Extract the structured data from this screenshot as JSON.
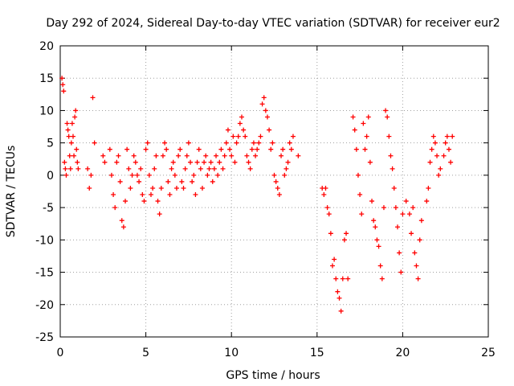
{
  "chart_data": {
    "type": "scatter",
    "title": "Day 292 of 2024, Sidereal Day-to-day VTEC variation (SDTVAR) for receiver eur2",
    "xlabel": "GPS time / hours",
    "ylabel": "SDTVAR / TECUs",
    "xlim": [
      0,
      25
    ],
    "ylim": [
      -25,
      20
    ],
    "xticks": [
      0,
      5,
      10,
      15,
      20,
      25
    ],
    "xtick_labels": [
      "0",
      "5",
      "10",
      "15",
      "20",
      "25"
    ],
    "yticks": [
      -25,
      -20,
      -15,
      -10,
      -5,
      0,
      5,
      10,
      15,
      20
    ],
    "ytick_labels": [
      "-25",
      "-20",
      "-15",
      "-10",
      "-5",
      "0",
      "5",
      "10",
      "15",
      "20"
    ],
    "grid": true,
    "marker": "+",
    "marker_color": "#ff0000",
    "series": [
      {
        "name": "SDTVAR",
        "x": [
          0.1,
          0.15,
          0.2,
          0.25,
          0.3,
          0.35,
          0.4,
          0.45,
          0.5,
          0.55,
          0.6,
          0.65,
          0.7,
          0.75,
          0.8,
          0.85,
          0.9,
          0.95,
          1.0,
          1.05,
          1.6,
          1.7,
          1.8,
          1.9,
          2.0,
          2.5,
          2.6,
          2.9,
          3.0,
          3.1,
          3.2,
          3.3,
          3.4,
          3.5,
          3.6,
          3.7,
          3.8,
          3.9,
          4.0,
          4.1,
          4.2,
          4.3,
          4.4,
          4.5,
          4.6,
          4.7,
          4.8,
          4.9,
          5.0,
          5.1,
          5.2,
          5.3,
          5.4,
          5.5,
          5.6,
          5.7,
          5.8,
          5.9,
          6.0,
          6.1,
          6.2,
          6.3,
          6.4,
          6.5,
          6.6,
          6.7,
          6.8,
          6.9,
          7.0,
          7.1,
          7.2,
          7.3,
          7.4,
          7.5,
          7.6,
          7.7,
          7.8,
          7.9,
          8.0,
          8.1,
          8.2,
          8.3,
          8.4,
          8.5,
          8.6,
          8.7,
          8.8,
          8.9,
          9.0,
          9.1,
          9.2,
          9.3,
          9.4,
          9.5,
          9.6,
          9.7,
          9.8,
          9.9,
          10.0,
          10.1,
          10.2,
          10.3,
          10.4,
          10.5,
          10.6,
          10.7,
          10.8,
          10.9,
          11.0,
          11.1,
          11.2,
          11.3,
          11.4,
          11.5,
          11.6,
          11.7,
          11.8,
          11.9,
          12.0,
          12.1,
          12.2,
          12.3,
          12.4,
          12.5,
          12.6,
          12.7,
          12.8,
          12.9,
          13.0,
          13.1,
          13.2,
          13.3,
          13.4,
          13.5,
          13.6,
          13.9,
          15.3,
          15.4,
          15.5,
          15.6,
          15.7,
          15.8,
          15.9,
          16.0,
          16.1,
          16.2,
          16.3,
          16.4,
          16.5,
          16.6,
          16.7,
          16.8,
          17.1,
          17.2,
          17.3,
          17.4,
          17.5,
          17.6,
          17.7,
          17.8,
          17.9,
          18.0,
          18.1,
          18.2,
          18.3,
          18.4,
          18.5,
          18.6,
          18.7,
          18.8,
          18.9,
          19.0,
          19.1,
          19.2,
          19.3,
          19.4,
          19.5,
          19.6,
          19.7,
          19.8,
          19.9,
          20.0,
          20.2,
          20.4,
          20.5,
          20.6,
          20.7,
          20.8,
          20.9,
          21.0,
          21.1,
          21.4,
          21.5,
          21.6,
          21.7,
          21.8,
          21.9,
          22.0,
          22.1,
          22.2,
          22.4,
          22.5,
          22.6,
          22.7,
          22.8,
          22.9
        ],
        "y": [
          15,
          14,
          13,
          2,
          1,
          0,
          8,
          7,
          6,
          3,
          1,
          5,
          8,
          6,
          3,
          9,
          10,
          4,
          2,
          1,
          1,
          -2,
          0,
          12,
          5,
          3,
          2,
          4,
          0,
          -3,
          -5,
          2,
          3,
          -1,
          -7,
          -8,
          -4,
          4,
          1,
          -2,
          0,
          3,
          2,
          0,
          -1,
          1,
          -3,
          -4,
          4,
          5,
          0,
          -3,
          -2,
          1,
          3,
          -4,
          -6,
          -2,
          3,
          5,
          4,
          -1,
          -3,
          1,
          2,
          0,
          -2,
          3,
          4,
          -1,
          -2,
          1,
          3,
          5,
          2,
          -1,
          0,
          -3,
          2,
          4,
          1,
          -2,
          2,
          3,
          0,
          1,
          2,
          -1,
          1,
          3,
          0,
          2,
          4,
          1,
          3,
          5,
          7,
          4,
          3,
          6,
          2,
          5,
          6,
          8,
          9,
          7,
          6,
          3,
          2,
          1,
          4,
          5,
          3,
          4,
          5,
          6,
          11,
          12,
          10,
          9,
          7,
          4,
          5,
          0,
          -1,
          -2,
          -3,
          3,
          4,
          0,
          1,
          2,
          5,
          4,
          6,
          3,
          -2,
          -3,
          -2,
          -5,
          -6,
          -9,
          -14,
          -13,
          -16,
          -18,
          -19,
          -21,
          -16,
          -10,
          -9,
          -16,
          9,
          7,
          4,
          0,
          -3,
          -6,
          8,
          4,
          6,
          9,
          2,
          -4,
          -7,
          -8,
          -10,
          -11,
          -14,
          -16,
          -5,
          10,
          9,
          6,
          3,
          1,
          -2,
          -5,
          -8,
          -12,
          -15,
          -6,
          -4,
          -6,
          -9,
          -5,
          -12,
          -14,
          -16,
          -10,
          -7,
          -4,
          -2,
          2,
          4,
          6,
          5,
          3,
          0,
          1,
          3,
          5,
          6,
          4,
          2,
          6
        ]
      }
    ]
  }
}
